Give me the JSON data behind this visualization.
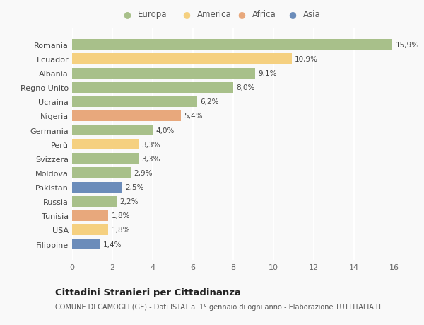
{
  "countries": [
    "Romania",
    "Ecuador",
    "Albania",
    "Regno Unito",
    "Ucraina",
    "Nigeria",
    "Germania",
    "Perù",
    "Svizzera",
    "Moldova",
    "Pakistan",
    "Russia",
    "Tunisia",
    "USA",
    "Filippine"
  ],
  "values": [
    15.9,
    10.9,
    9.1,
    8.0,
    6.2,
    5.4,
    4.0,
    3.3,
    3.3,
    2.9,
    2.5,
    2.2,
    1.8,
    1.8,
    1.4
  ],
  "labels": [
    "15,9%",
    "10,9%",
    "9,1%",
    "8,0%",
    "6,2%",
    "5,4%",
    "4,0%",
    "3,3%",
    "3,3%",
    "2,9%",
    "2,5%",
    "2,2%",
    "1,8%",
    "1,8%",
    "1,4%"
  ],
  "continents": [
    "Europa",
    "America",
    "Europa",
    "Europa",
    "Europa",
    "Africa",
    "Europa",
    "America",
    "Europa",
    "Europa",
    "Asia",
    "Europa",
    "Africa",
    "America",
    "Asia"
  ],
  "colors": {
    "Europa": "#a8c08a",
    "America": "#f5d080",
    "Africa": "#e8a87c",
    "Asia": "#6b8cba"
  },
  "legend_order": [
    "Europa",
    "America",
    "Africa",
    "Asia"
  ],
  "xlim": [
    0,
    16
  ],
  "xticks": [
    0,
    2,
    4,
    6,
    8,
    10,
    12,
    14,
    16
  ],
  "title": "Cittadini Stranieri per Cittadinanza",
  "subtitle": "COMUNE DI CAMOGLI (GE) - Dati ISTAT al 1° gennaio di ogni anno - Elaborazione TUTTITALIA.IT",
  "bg_color": "#f9f9f9",
  "grid_color": "#ffffff",
  "bar_height": 0.75
}
